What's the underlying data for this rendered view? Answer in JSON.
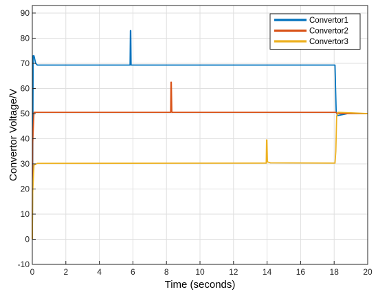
{
  "chart_data": {
    "type": "line",
    "title": "",
    "xlabel": "Time (seconds)",
    "ylabel": "Convertor Voltage/V",
    "xlim": [
      0,
      20
    ],
    "ylim": [
      -10,
      93
    ],
    "xticks": [
      0,
      2,
      4,
      6,
      8,
      10,
      12,
      14,
      16,
      18,
      20
    ],
    "yticks": [
      -10,
      0,
      10,
      20,
      30,
      40,
      50,
      60,
      70,
      80,
      90
    ],
    "grid": true,
    "legend_position": "top-right",
    "series": [
      {
        "name": "Convertor1",
        "color": "#0072BD",
        "points": [
          [
            0,
            0
          ],
          [
            0.02,
            20
          ],
          [
            0.05,
            73
          ],
          [
            0.1,
            73
          ],
          [
            0.2,
            70
          ],
          [
            0.3,
            69.3
          ],
          [
            5.83,
            69.3
          ],
          [
            5.85,
            83
          ],
          [
            5.87,
            83
          ],
          [
            5.89,
            69.3
          ],
          [
            18.0,
            69.3
          ],
          [
            18.05,
            69.3
          ],
          [
            18.12,
            51
          ],
          [
            18.2,
            49.2
          ],
          [
            18.5,
            49.6
          ],
          [
            18.8,
            50
          ],
          [
            20,
            50
          ]
        ]
      },
      {
        "name": "Convertor2",
        "color": "#D95319",
        "points": [
          [
            0,
            0
          ],
          [
            0.02,
            38
          ],
          [
            0.1,
            50.5
          ],
          [
            8.25,
            50.5
          ],
          [
            8.27,
            62.5
          ],
          [
            8.29,
            62.5
          ],
          [
            8.32,
            50.5
          ],
          [
            18.1,
            50.5
          ],
          [
            18.2,
            50
          ],
          [
            20,
            50
          ]
        ]
      },
      {
        "name": "Convertor3",
        "color": "#EDB120",
        "points": [
          [
            0,
            0
          ],
          [
            0.02,
            18
          ],
          [
            0.1,
            29.5
          ],
          [
            0.3,
            30.2
          ],
          [
            13.95,
            30.3
          ],
          [
            13.97,
            39.5
          ],
          [
            13.99,
            39.5
          ],
          [
            14.02,
            30.8
          ],
          [
            14.2,
            30.4
          ],
          [
            18.05,
            30.3
          ],
          [
            18.1,
            35
          ],
          [
            18.15,
            49
          ],
          [
            18.25,
            50.5
          ],
          [
            20,
            50
          ]
        ]
      }
    ]
  }
}
